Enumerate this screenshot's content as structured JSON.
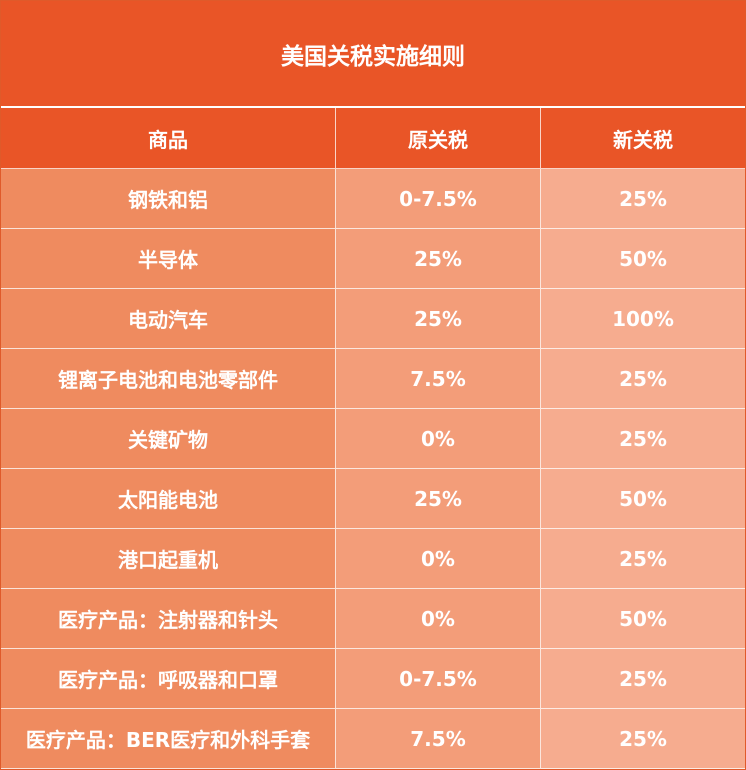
{
  "title": "美国关税实施细则",
  "headers": [
    "商品",
    "原关税",
    "新关税"
  ],
  "rows": [
    {
      "product": "钢铁和铝",
      "old_tariff": "0-7.5%",
      "new_tariff": "25%"
    },
    {
      "product": "半导体",
      "old_tariff": "25%",
      "new_tariff": "50%"
    },
    {
      "product": "电动汽车",
      "old_tariff": "25%",
      "new_tariff": "100%"
    },
    {
      "product": "锂离子电池和电池零部件",
      "old_tariff": "7.5%",
      "new_tariff": "25%"
    },
    {
      "product": "关键矿物",
      "old_tariff": "0%",
      "new_tariff": "25%"
    },
    {
      "product": "太阳能电池",
      "old_tariff": "25%",
      "new_tariff": "50%"
    },
    {
      "product": "港口起重机",
      "old_tariff": "0%",
      "new_tariff": "25%"
    },
    {
      "product": "医疗产品：注射器和针头",
      "old_tariff": "0%",
      "new_tariff": "50%"
    },
    {
      "product": "医疗产品：呼吸器和口罩",
      "old_tariff": "0-7.5%",
      "new_tariff": "25%"
    },
    {
      "product": "医疗产品：BER医疗和外科手套",
      "old_tariff": "7.5%",
      "new_tariff": "25%"
    }
  ],
  "colors": {
    "header": "#e95527",
    "col1": "#ef8b5f",
    "col2": "#f39d79",
    "col3": "#f6ac8f"
  }
}
